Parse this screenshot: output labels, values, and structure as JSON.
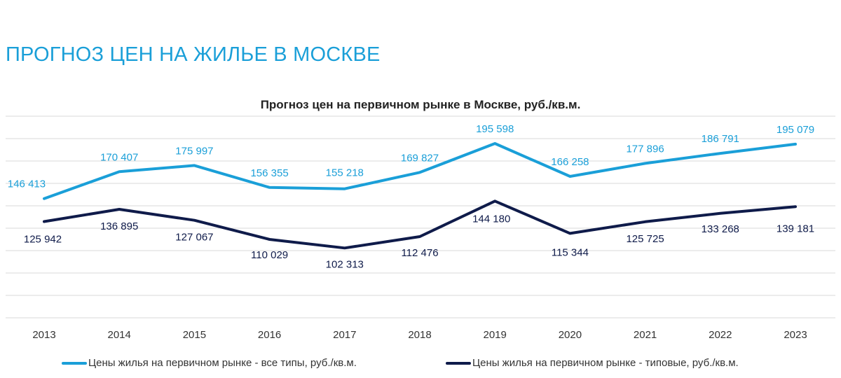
{
  "page": {
    "title": "ПРОГНОЗ ЦЕН НА ЖИЛЬЕ В МОСКВЕ"
  },
  "colors": {
    "title": "#1a9fd8",
    "series_all": "#1a9fd8",
    "series_typical": "#0f1b4a",
    "grid": "#d9d9d9"
  },
  "chart_data": {
    "type": "line",
    "title": "Прогноз цен на первичном рынке в Москве, руб./кв.м.",
    "x": [
      "2013",
      "2014",
      "2015",
      "2016",
      "2017",
      "2018",
      "2019",
      "2020",
      "2021",
      "2022",
      "2023"
    ],
    "series": [
      {
        "name": "Цены жилья на первичном рынке - все типы, руб./кв.м.",
        "color": "#1a9fd8",
        "values": [
          146413,
          170407,
          175997,
          156355,
          155218,
          169827,
          195598,
          166258,
          177896,
          186791,
          195079
        ],
        "labels": [
          "146 413",
          "170 407",
          "175 997",
          "156 355",
          "155 218",
          "169 827",
          "195 598",
          "166 258",
          "177 896",
          "186 791",
          "195 079"
        ]
      },
      {
        "name": "Цены жилья на первичном рынке - типовые, руб./кв.м.",
        "color": "#0f1b4a",
        "values": [
          125942,
          136895,
          127067,
          110029,
          102313,
          112476,
          144180,
          115344,
          125725,
          133268,
          139181
        ],
        "labels": [
          "125 942",
          "136 895",
          "127 067",
          "110 029",
          "102 313",
          "112 476",
          "144 180",
          "115 344",
          "125 725",
          "133 268",
          "139 181"
        ]
      }
    ],
    "ylim": [
      40000,
      220000
    ],
    "grid": true,
    "legend_position": "bottom"
  }
}
